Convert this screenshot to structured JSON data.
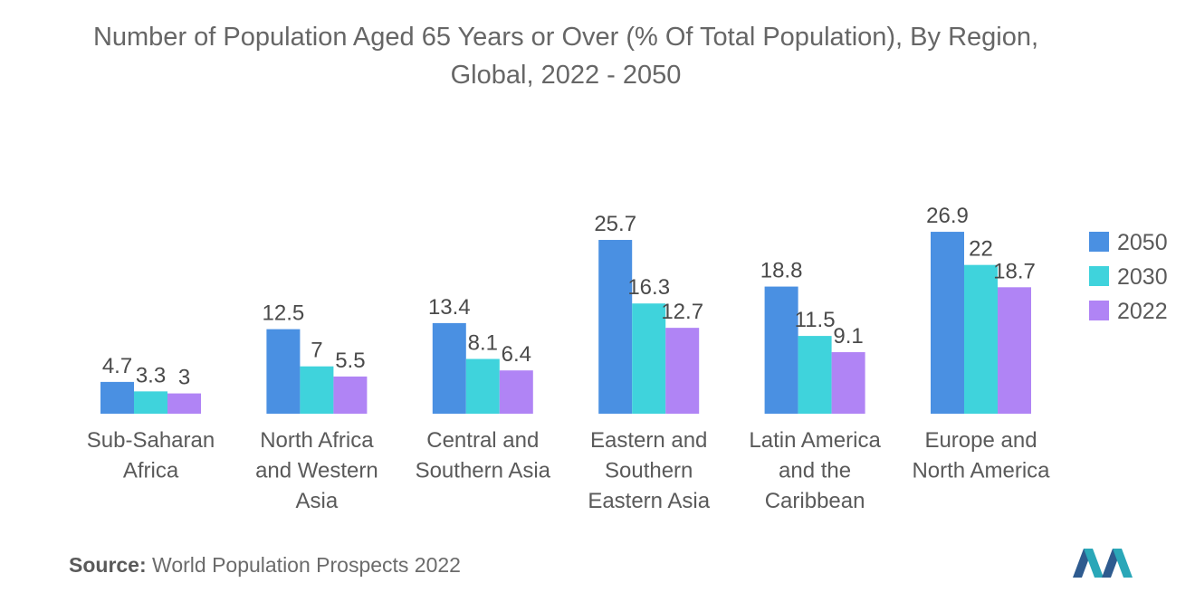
{
  "title": "Number of Population Aged 65 Years or Over (% Of Total Population), By Region, Global, 2022 - 2050",
  "source": {
    "label": "Source:",
    "text": "World Population Prospects 2022"
  },
  "colors": {
    "2050": "#4a90e2",
    "2030": "#3fd3dc",
    "2022": "#b084f5"
  },
  "chart_data": {
    "type": "bar",
    "title": "Number of Population Aged 65 Years or Over (% Of Total Population), By Region, Global, 2022 - 2050",
    "xlabel": "",
    "ylabel": "",
    "ylim": [
      0,
      30
    ],
    "grid": false,
    "legend": "right",
    "categories": [
      [
        "Sub-Saharan",
        "Africa"
      ],
      [
        "North Africa",
        "and Western",
        "Asia"
      ],
      [
        "Central and",
        "Southern Asia"
      ],
      [
        "Eastern and",
        "Southern",
        "Eastern Asia"
      ],
      [
        "Latin America",
        "and the",
        "Caribbean"
      ],
      [
        "Europe and",
        "North America"
      ]
    ],
    "series": [
      {
        "name": "2050",
        "values": [
          4.7,
          12.5,
          13.4,
          25.7,
          18.8,
          26.9
        ],
        "labels": [
          "4.7",
          "12.5",
          "13.4",
          "25.7",
          "18.8",
          "26.9"
        ]
      },
      {
        "name": "2030",
        "values": [
          3.3,
          7,
          8.1,
          16.3,
          11.5,
          22
        ],
        "labels": [
          "3.3",
          "7",
          "8.1",
          "16.3",
          "11.5",
          "22"
        ]
      },
      {
        "name": "2022",
        "values": [
          3,
          5.5,
          6.4,
          12.7,
          9.1,
          18.7
        ],
        "labels": [
          "3",
          "5.5",
          "6.4",
          "12.7",
          "9.1",
          "18.7"
        ]
      }
    ]
  }
}
